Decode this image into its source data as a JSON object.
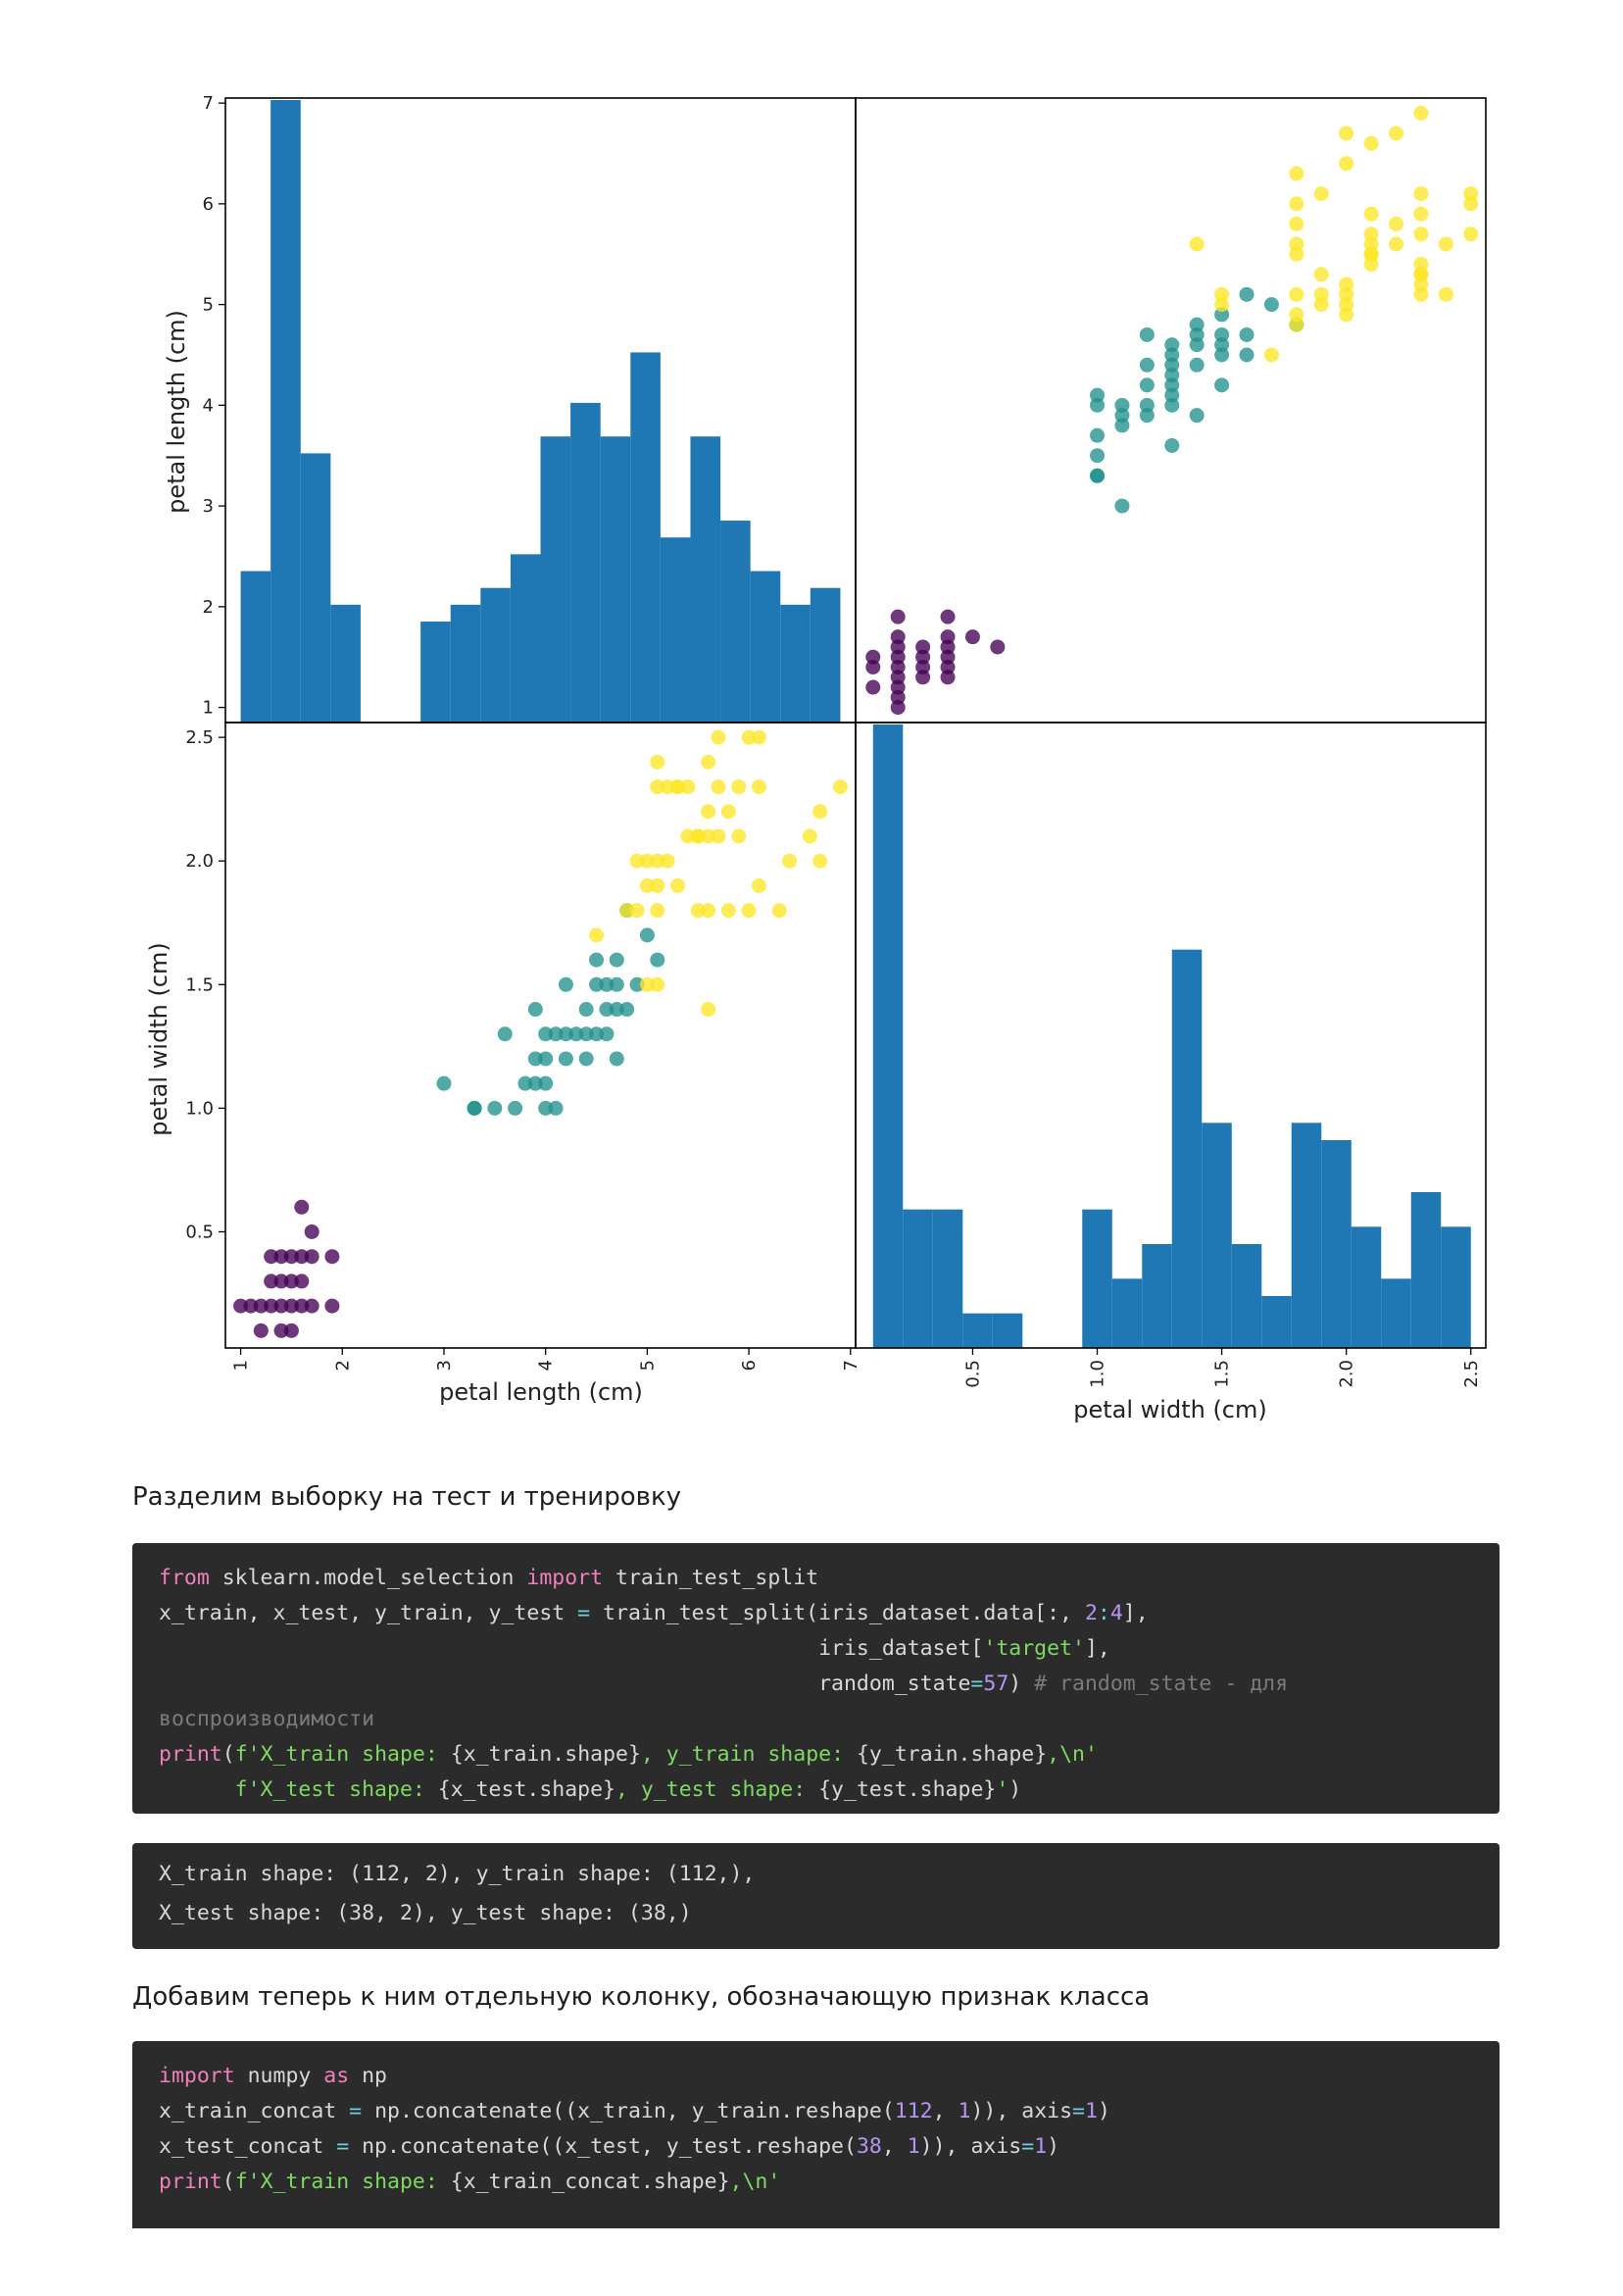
{
  "chart_data": {
    "type": "scatter",
    "subtype": "scatter-matrix (2x2) with histograms on diagonal",
    "variables": [
      "petal length (cm)",
      "petal width (cm)"
    ],
    "class_colors": {
      "0": "#440154",
      "1": "#21918c",
      "2": "#fde725"
    },
    "hist_color": "#1f77b4",
    "axes": {
      "petal_length": {
        "label": "petal length (cm)",
        "range": [
          0.85,
          7.05
        ],
        "ticks": [
          "1",
          "2",
          "3",
          "4",
          "5",
          "6",
          "7"
        ]
      },
      "petal_width": {
        "label": "petal width (cm)",
        "range": [
          0.03,
          2.56
        ],
        "ticks": [
          "0.5",
          "1.0",
          "1.5",
          "2.0",
          "2.5"
        ]
      }
    },
    "hist_petal_length": {
      "bin_edges": [
        1.0,
        1.295,
        1.59,
        1.885,
        2.18,
        2.475,
        2.77,
        3.065,
        3.36,
        3.655,
        3.95,
        4.245,
        4.54,
        4.835,
        5.13,
        5.425,
        5.72,
        6.015,
        6.31,
        6.605,
        6.9
      ],
      "counts": [
        9,
        37,
        16,
        7,
        0,
        0,
        6,
        7,
        8,
        10,
        17,
        19,
        17,
        22,
        11,
        17,
        12,
        9,
        7,
        8
      ]
    },
    "hist_petal_width": {
      "bin_edges": [
        0.1,
        0.22,
        0.34,
        0.46,
        0.58,
        0.7,
        0.82,
        0.94,
        1.06,
        1.18,
        1.3,
        1.42,
        1.54,
        1.66,
        1.78,
        1.9,
        2.02,
        2.14,
        2.26,
        2.38,
        2.5
      ],
      "counts": [
        36,
        8,
        8,
        2,
        2,
        0,
        0,
        8,
        4,
        6,
        23,
        13,
        6,
        3,
        13,
        12,
        7,
        4,
        9,
        7
      ]
    },
    "points": [
      {
        "pl": 1.1,
        "pw": 0.2,
        "c": 0
      },
      {
        "pl": 1.2,
        "pw": 0.1,
        "c": 0
      },
      {
        "pl": 1.3,
        "pw": 0.2,
        "c": 0
      },
      {
        "pl": 1.3,
        "pw": 0.3,
        "c": 0
      },
      {
        "pl": 1.3,
        "pw": 0.4,
        "c": 0
      },
      {
        "pl": 1.4,
        "pw": 0.1,
        "c": 0
      },
      {
        "pl": 1.4,
        "pw": 0.2,
        "c": 0
      },
      {
        "pl": 1.4,
        "pw": 0.3,
        "c": 0
      },
      {
        "pl": 1.4,
        "pw": 0.4,
        "c": 0
      },
      {
        "pl": 1.5,
        "pw": 0.1,
        "c": 0
      },
      {
        "pl": 1.5,
        "pw": 0.2,
        "c": 0
      },
      {
        "pl": 1.5,
        "pw": 0.3,
        "c": 0
      },
      {
        "pl": 1.5,
        "pw": 0.4,
        "c": 0
      },
      {
        "pl": 1.6,
        "pw": 0.2,
        "c": 0
      },
      {
        "pl": 1.6,
        "pw": 0.4,
        "c": 0
      },
      {
        "pl": 1.6,
        "pw": 0.6,
        "c": 0
      },
      {
        "pl": 1.7,
        "pw": 0.2,
        "c": 0
      },
      {
        "pl": 1.7,
        "pw": 0.4,
        "c": 0
      },
      {
        "pl": 1.7,
        "pw": 0.5,
        "c": 0
      },
      {
        "pl": 1.9,
        "pw": 0.2,
        "c": 0
      },
      {
        "pl": 1.9,
        "pw": 0.4,
        "c": 0
      },
      {
        "pl": 1.0,
        "pw": 0.2,
        "c": 0
      },
      {
        "pl": 1.2,
        "pw": 0.2,
        "c": 0
      },
      {
        "pl": 1.6,
        "pw": 0.3,
        "c": 0
      },
      {
        "pl": 3.0,
        "pw": 1.1,
        "c": 1
      },
      {
        "pl": 3.3,
        "pw": 1.0,
        "c": 1
      },
      {
        "pl": 3.5,
        "pw": 1.0,
        "c": 1
      },
      {
        "pl": 3.6,
        "pw": 1.3,
        "c": 1
      },
      {
        "pl": 3.7,
        "pw": 1.0,
        "c": 1
      },
      {
        "pl": 3.8,
        "pw": 1.1,
        "c": 1
      },
      {
        "pl": 3.9,
        "pw": 1.1,
        "c": 1
      },
      {
        "pl": 3.9,
        "pw": 1.2,
        "c": 1
      },
      {
        "pl": 3.9,
        "pw": 1.4,
        "c": 1
      },
      {
        "pl": 4.0,
        "pw": 1.0,
        "c": 1
      },
      {
        "pl": 4.0,
        "pw": 1.2,
        "c": 1
      },
      {
        "pl": 4.0,
        "pw": 1.3,
        "c": 1
      },
      {
        "pl": 4.1,
        "pw": 1.0,
        "c": 1
      },
      {
        "pl": 4.1,
        "pw": 1.3,
        "c": 1
      },
      {
        "pl": 4.2,
        "pw": 1.2,
        "c": 1
      },
      {
        "pl": 4.2,
        "pw": 1.3,
        "c": 1
      },
      {
        "pl": 4.2,
        "pw": 1.5,
        "c": 1
      },
      {
        "pl": 4.3,
        "pw": 1.3,
        "c": 1
      },
      {
        "pl": 4.4,
        "pw": 1.2,
        "c": 1
      },
      {
        "pl": 4.4,
        "pw": 1.3,
        "c": 1
      },
      {
        "pl": 4.4,
        "pw": 1.4,
        "c": 1
      },
      {
        "pl": 4.5,
        "pw": 1.3,
        "c": 1
      },
      {
        "pl": 4.5,
        "pw": 1.5,
        "c": 1
      },
      {
        "pl": 4.5,
        "pw": 1.6,
        "c": 1
      },
      {
        "pl": 4.6,
        "pw": 1.3,
        "c": 1
      },
      {
        "pl": 4.6,
        "pw": 1.4,
        "c": 1
      },
      {
        "pl": 4.6,
        "pw": 1.5,
        "c": 1
      },
      {
        "pl": 4.7,
        "pw": 1.2,
        "c": 1
      },
      {
        "pl": 4.7,
        "pw": 1.4,
        "c": 1
      },
      {
        "pl": 4.7,
        "pw": 1.5,
        "c": 1
      },
      {
        "pl": 4.7,
        "pw": 1.6,
        "c": 1
      },
      {
        "pl": 4.8,
        "pw": 1.4,
        "c": 1
      },
      {
        "pl": 4.8,
        "pw": 1.8,
        "c": 1
      },
      {
        "pl": 4.9,
        "pw": 1.5,
        "c": 1
      },
      {
        "pl": 5.0,
        "pw": 1.7,
        "c": 1
      },
      {
        "pl": 5.1,
        "pw": 1.6,
        "c": 1
      },
      {
        "pl": 4.0,
        "pw": 1.1,
        "c": 1
      },
      {
        "pl": 3.3,
        "pw": 1.0,
        "c": 1
      },
      {
        "pl": 4.5,
        "pw": 1.7,
        "c": 2
      },
      {
        "pl": 4.8,
        "pw": 1.8,
        "c": 2
      },
      {
        "pl": 4.9,
        "pw": 1.8,
        "c": 2
      },
      {
        "pl": 5.0,
        "pw": 1.5,
        "c": 2
      },
      {
        "pl": 5.0,
        "pw": 1.9,
        "c": 2
      },
      {
        "pl": 5.0,
        "pw": 2.0,
        "c": 2
      },
      {
        "pl": 5.1,
        "pw": 1.5,
        "c": 2
      },
      {
        "pl": 5.1,
        "pw": 1.8,
        "c": 2
      },
      {
        "pl": 5.1,
        "pw": 1.9,
        "c": 2
      },
      {
        "pl": 5.1,
        "pw": 2.0,
        "c": 2
      },
      {
        "pl": 5.1,
        "pw": 2.3,
        "c": 2
      },
      {
        "pl": 5.1,
        "pw": 2.4,
        "c": 2
      },
      {
        "pl": 5.2,
        "pw": 2.0,
        "c": 2
      },
      {
        "pl": 5.2,
        "pw": 2.3,
        "c": 2
      },
      {
        "pl": 5.3,
        "pw": 1.9,
        "c": 2
      },
      {
        "pl": 5.3,
        "pw": 2.3,
        "c": 2
      },
      {
        "pl": 5.4,
        "pw": 2.1,
        "c": 2
      },
      {
        "pl": 5.4,
        "pw": 2.3,
        "c": 2
      },
      {
        "pl": 5.5,
        "pw": 1.8,
        "c": 2
      },
      {
        "pl": 5.5,
        "pw": 2.1,
        "c": 2
      },
      {
        "pl": 5.6,
        "pw": 1.4,
        "c": 2
      },
      {
        "pl": 5.6,
        "pw": 1.8,
        "c": 2
      },
      {
        "pl": 5.6,
        "pw": 2.1,
        "c": 2
      },
      {
        "pl": 5.6,
        "pw": 2.2,
        "c": 2
      },
      {
        "pl": 5.6,
        "pw": 2.4,
        "c": 2
      },
      {
        "pl": 5.7,
        "pw": 2.1,
        "c": 2
      },
      {
        "pl": 5.7,
        "pw": 2.3,
        "c": 2
      },
      {
        "pl": 5.7,
        "pw": 2.5,
        "c": 2
      },
      {
        "pl": 5.8,
        "pw": 1.8,
        "c": 2
      },
      {
        "pl": 5.8,
        "pw": 2.2,
        "c": 2
      },
      {
        "pl": 5.9,
        "pw": 2.1,
        "c": 2
      },
      {
        "pl": 5.9,
        "pw": 2.3,
        "c": 2
      },
      {
        "pl": 6.0,
        "pw": 1.8,
        "c": 2
      },
      {
        "pl": 6.0,
        "pw": 2.5,
        "c": 2
      },
      {
        "pl": 6.1,
        "pw": 1.9,
        "c": 2
      },
      {
        "pl": 6.1,
        "pw": 2.3,
        "c": 2
      },
      {
        "pl": 6.1,
        "pw": 2.5,
        "c": 2
      },
      {
        "pl": 6.3,
        "pw": 1.8,
        "c": 2
      },
      {
        "pl": 6.4,
        "pw": 2.0,
        "c": 2
      },
      {
        "pl": 6.6,
        "pw": 2.1,
        "c": 2
      },
      {
        "pl": 6.7,
        "pw": 2.0,
        "c": 2
      },
      {
        "pl": 6.7,
        "pw": 2.2,
        "c": 2
      },
      {
        "pl": 6.9,
        "pw": 2.3,
        "c": 2
      },
      {
        "pl": 5.5,
        "pw": 2.1,
        "c": 2
      },
      {
        "pl": 4.9,
        "pw": 2.0,
        "c": 2
      },
      {
        "pl": 5.3,
        "pw": 2.3,
        "c": 2
      }
    ]
  },
  "paragraphs": {
    "split_text": "Разделим выборку на тест и тренировку",
    "add_column_text": "Добавим теперь к ним отдельную колонку, обозначающую признак класса"
  },
  "code_blocks": [
    {
      "lines": [
        [
          [
            "keyword",
            "from"
          ],
          [
            "plain",
            " sklearn.model_selection "
          ],
          [
            "keyword",
            "import"
          ],
          [
            "plain",
            " train_test_split"
          ]
        ],
        [
          [
            "plain",
            "x_train, x_test, y_train, y_test "
          ],
          [
            "op",
            "="
          ],
          [
            "plain",
            " train_test_split(iris_dataset.data[:, "
          ],
          [
            "number",
            "2"
          ],
          [
            "op",
            ":"
          ],
          [
            "number",
            "4"
          ],
          [
            "plain",
            "],"
          ]
        ],
        [
          [
            "plain",
            "                                                    iris_dataset["
          ],
          [
            "string",
            "'target'"
          ],
          [
            "plain",
            "],"
          ]
        ],
        [
          [
            "plain",
            "                                                    random_state"
          ],
          [
            "op",
            "="
          ],
          [
            "number",
            "57"
          ],
          [
            "plain",
            ") "
          ],
          [
            "comment",
            "# random_state - для"
          ]
        ],
        [
          [
            "comment",
            "воспроизводимости"
          ]
        ],
        [
          [
            "keyword",
            "print"
          ],
          [
            "plain",
            "("
          ],
          [
            "string",
            "f'X_train shape: "
          ],
          [
            "plain",
            "{x_train.shape}"
          ],
          [
            "string",
            ", y_train shape: "
          ],
          [
            "plain",
            "{y_train.shape}"
          ],
          [
            "string",
            ",\\n'"
          ]
        ],
        [
          [
            "plain",
            "      "
          ],
          [
            "string",
            "f'X_test shape: "
          ],
          [
            "plain",
            "{x_test.shape}"
          ],
          [
            "string",
            ", y_test shape: "
          ],
          [
            "plain",
            "{y_test.shape}"
          ],
          [
            "string",
            "'"
          ],
          [
            "plain",
            ")"
          ]
        ]
      ]
    },
    {
      "lines": [
        [
          [
            "plain",
            "X_train shape: (112, 2), y_train shape: (112,),"
          ]
        ],
        [
          [
            "plain",
            "X_test shape: (38, 2), y_test shape: (38,)"
          ]
        ]
      ]
    },
    {
      "lines": [
        [
          [
            "keyword",
            "import"
          ],
          [
            "plain",
            " numpy "
          ],
          [
            "keyword",
            "as"
          ],
          [
            "plain",
            " np"
          ]
        ],
        [
          [
            "plain",
            "x_train_concat "
          ],
          [
            "op",
            "="
          ],
          [
            "plain",
            " np.concatenate((x_train, y_train.reshape("
          ],
          [
            "number",
            "112"
          ],
          [
            "plain",
            ", "
          ],
          [
            "number",
            "1"
          ],
          [
            "plain",
            ")), axis"
          ],
          [
            "op",
            "="
          ],
          [
            "number",
            "1"
          ],
          [
            "plain",
            ")"
          ]
        ],
        [
          [
            "plain",
            "x_test_concat "
          ],
          [
            "op",
            "="
          ],
          [
            "plain",
            " np.concatenate((x_test, y_test.reshape("
          ],
          [
            "number",
            "38"
          ],
          [
            "plain",
            ", "
          ],
          [
            "number",
            "1"
          ],
          [
            "plain",
            ")), axis"
          ],
          [
            "op",
            "="
          ],
          [
            "number",
            "1"
          ],
          [
            "plain",
            ")"
          ]
        ],
        [
          [
            "keyword",
            "print"
          ],
          [
            "plain",
            "("
          ],
          [
            "string",
            "f'X_train shape: "
          ],
          [
            "plain",
            "{x_train_concat.shape}"
          ],
          [
            "string",
            ",\\n'"
          ]
        ]
      ]
    }
  ]
}
